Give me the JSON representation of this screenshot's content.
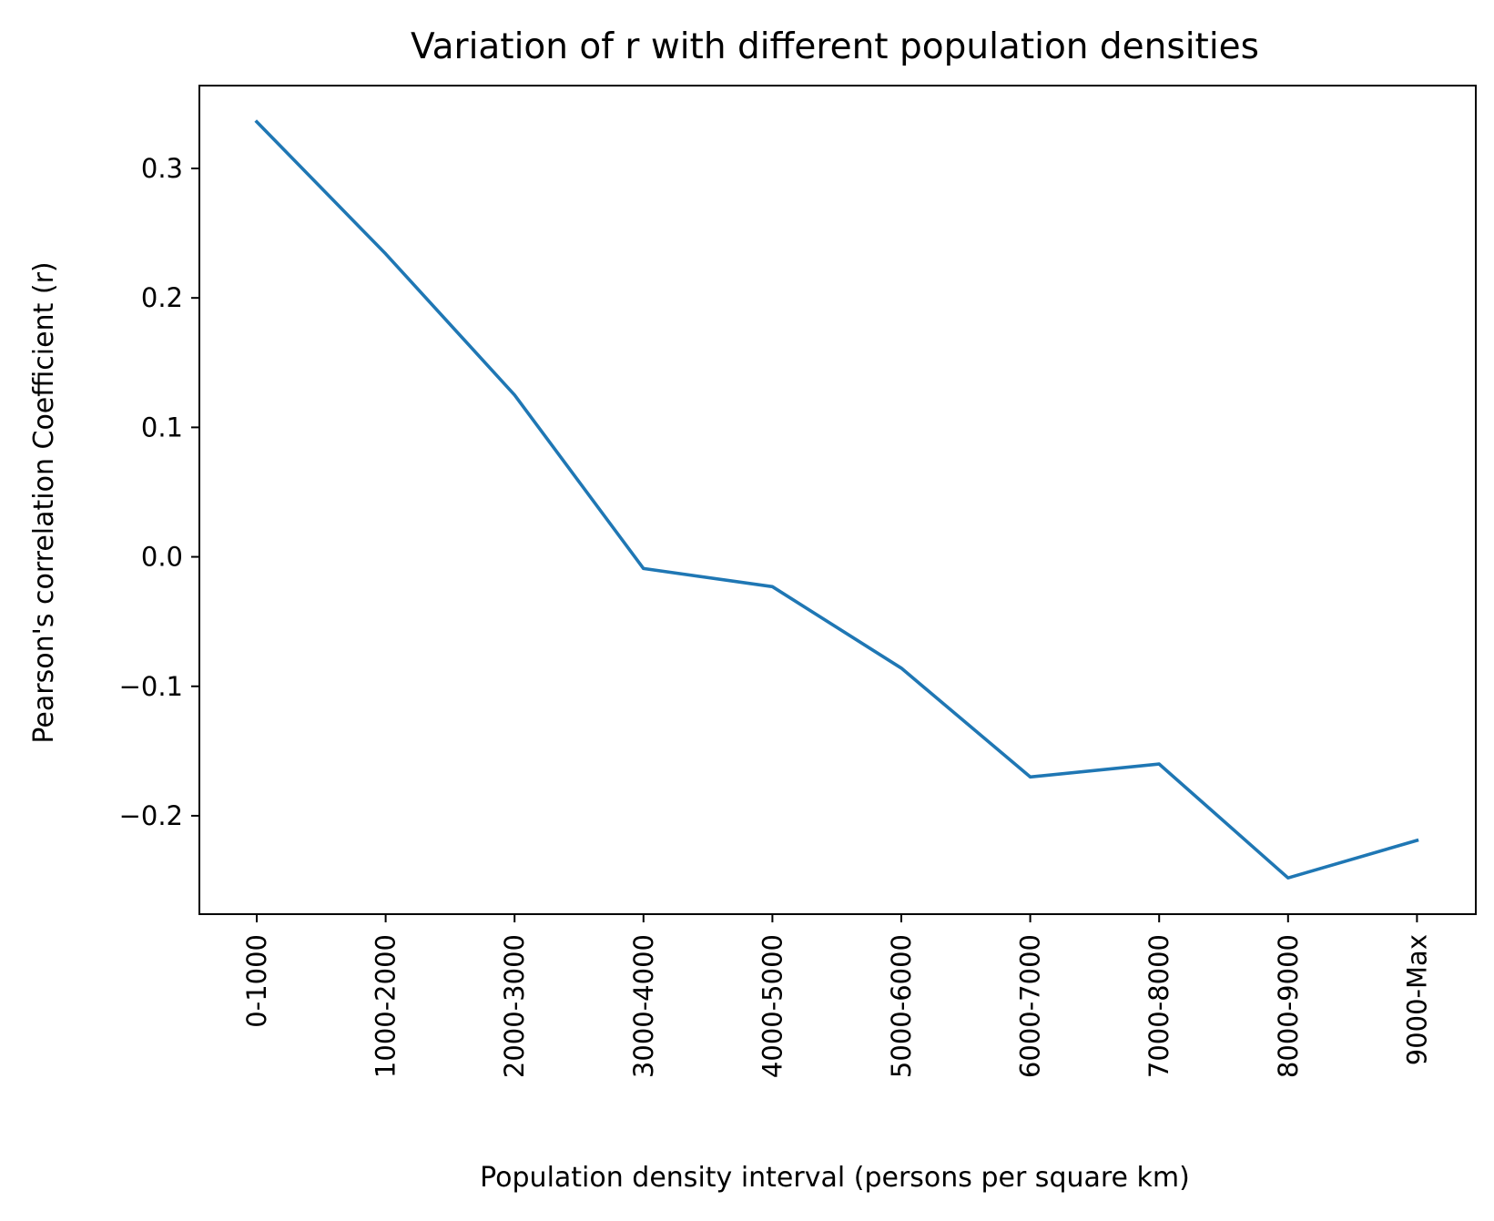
{
  "chart_data": {
    "type": "line",
    "title": "Variation of r with different population densities",
    "xlabel": "Population density interval (persons per square km)",
    "ylabel": "Pearson's correlation Coefficient (r)",
    "categories": [
      "0-1000",
      "1000-2000",
      "2000-3000",
      "3000-4000",
      "4000-5000",
      "5000-6000",
      "6000-7000",
      "7000-8000",
      "8000-9000",
      "9000-Max"
    ],
    "series": [
      {
        "values": [
          0.336,
          0.234,
          0.125,
          -0.009,
          -0.023,
          -0.086,
          -0.17,
          -0.16,
          -0.248,
          -0.219
        ]
      }
    ],
    "ylim": [
      -0.276,
      0.364
    ],
    "yticks": [
      -0.2,
      -0.1,
      0.0,
      0.1,
      0.2,
      0.3
    ],
    "ytick_labels": [
      "−0.2",
      "−0.1",
      "0.0",
      "0.1",
      "0.2",
      "0.3"
    ],
    "grid": false,
    "line_color": "#1f77b4"
  }
}
